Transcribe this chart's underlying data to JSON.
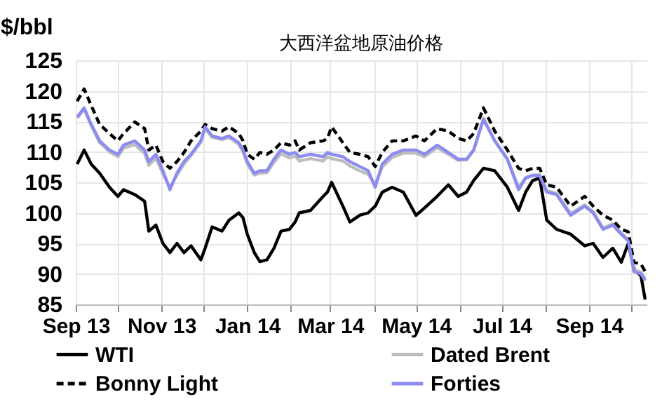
{
  "chart_data": {
    "type": "line",
    "title": "大西洋盆地原油价格",
    "ylabel": "$/bbl",
    "x": [
      "2013-09-02",
      "2013-09-07",
      "2013-09-12",
      "2013-09-18",
      "2013-09-25",
      "2013-10-01",
      "2013-10-05",
      "2013-10-13",
      "2013-10-20",
      "2013-10-23",
      "2013-10-28",
      "2013-11-02",
      "2013-11-07",
      "2013-11-12",
      "2013-11-17",
      "2013-11-22",
      "2013-11-29",
      "2013-12-02",
      "2013-12-07",
      "2013-12-14",
      "2013-12-19",
      "2013-12-26",
      "2013-12-29",
      "2014-01-01",
      "2014-01-06",
      "2014-01-10",
      "2014-01-15",
      "2014-01-20",
      "2014-01-25",
      "2014-01-31",
      "2014-02-04",
      "2014-02-07",
      "2014-02-15",
      "2014-02-24",
      "2014-02-27",
      "2014-03-02",
      "2014-03-10",
      "2014-03-15",
      "2014-03-22",
      "2014-03-28",
      "2014-04-02",
      "2014-04-07",
      "2014-04-14",
      "2014-04-22",
      "2014-05-01",
      "2014-05-07",
      "2014-05-16",
      "2014-05-24",
      "2014-05-31",
      "2014-06-06",
      "2014-06-11",
      "2014-06-18",
      "2014-06-26",
      "2014-07-05",
      "2014-07-13",
      "2014-07-18",
      "2014-07-23",
      "2014-07-28",
      "2014-08-02",
      "2014-08-09",
      "2014-08-19",
      "2014-08-29",
      "2014-09-04",
      "2014-09-11",
      "2014-09-18",
      "2014-09-24",
      "2014-09-29",
      "2014-10-03",
      "2014-10-08",
      "2014-10-11"
    ],
    "series": [
      {
        "name": "WTI",
        "color": "#000000",
        "line_style": "solid",
        "values": [
          108,
          110.3,
          108,
          106.5,
          104.2,
          102.7,
          103.8,
          103,
          101.9,
          97,
          98,
          95,
          93.5,
          95,
          93.5,
          94.6,
          92.3,
          94.2,
          97.7,
          97,
          98.8,
          100,
          99.2,
          96.5,
          93.5,
          92,
          92.3,
          94.2,
          97,
          97.3,
          98.5,
          100,
          100.4,
          102.7,
          103.4,
          105,
          101.1,
          98.5,
          99.6,
          100,
          101.1,
          103.4,
          104.2,
          103.4,
          99.6,
          100.8,
          102.7,
          104.6,
          102.7,
          103.4,
          105.3,
          107.3,
          106.9,
          104.2,
          100.4,
          103.4,
          105.3,
          105.7,
          98.8,
          97.3,
          96.5,
          94.6,
          95,
          92.7,
          94.2,
          91.9,
          95,
          90.8,
          89.7,
          85.8
        ]
      },
      {
        "name": "Dated Brent",
        "color": "#bdbdbd",
        "line_style": "solid",
        "values": [
          115.5,
          117,
          114.3,
          111.5,
          110,
          109.2,
          110.6,
          111.2,
          109.7,
          107.8,
          109,
          106.4,
          104.2,
          106.2,
          108,
          109.4,
          111.6,
          113.8,
          112.4,
          112,
          112.4,
          111.2,
          110,
          108,
          106.2,
          106.5,
          106.6,
          108.3,
          109.7,
          109,
          109.3,
          108.5,
          108.9,
          108.5,
          109.2,
          108.9,
          108.5,
          107.7,
          106.9,
          106.3,
          104.6,
          107.5,
          109.1,
          109.8,
          109.8,
          109.2,
          110.7,
          109.6,
          108.6,
          108.7,
          110.2,
          115.5,
          111.8,
          108.8,
          104.2,
          105.8,
          106.2,
          106.2,
          103.6,
          103.2,
          99.9,
          101.3,
          100.2,
          97.5,
          98.2,
          96.7,
          95.6,
          90.6,
          90.3,
          89.2
        ]
      },
      {
        "name": "Bonny Light",
        "color": "#000000",
        "line_style": "dashed",
        "values": [
          118.3,
          120.3,
          117.6,
          114.5,
          113,
          111.8,
          113,
          114.9,
          113.8,
          110.3,
          111.1,
          108.4,
          107.3,
          108.4,
          109.9,
          111.8,
          113.4,
          114.5,
          113.8,
          113.4,
          114.1,
          113,
          111.8,
          109.6,
          108.8,
          109.9,
          109.6,
          110.3,
          111.5,
          111.1,
          111.8,
          110.3,
          111.5,
          111.8,
          112.2,
          114.1,
          111.5,
          109.9,
          109.6,
          109.2,
          107.6,
          109.9,
          111.8,
          111.8,
          112.6,
          111.8,
          113.8,
          113.4,
          112.2,
          111.8,
          113,
          117.2,
          113.4,
          110.3,
          107.3,
          106.9,
          107.3,
          107.3,
          104.6,
          104.2,
          101.1,
          102.7,
          101.1,
          99.6,
          98.8,
          97.3,
          96.9,
          91.9,
          91.6,
          90.4
        ]
      },
      {
        "name": "Forties",
        "color": "#8c8cf0",
        "line_style": "solid",
        "values": [
          115.7,
          117.2,
          114.5,
          111.8,
          110.3,
          109.6,
          111.1,
          111.8,
          110.3,
          108.4,
          109.6,
          106.9,
          103.8,
          106.5,
          108.4,
          109.6,
          111.8,
          114.1,
          112.6,
          112.2,
          112.6,
          111.5,
          110.3,
          108.4,
          106.5,
          106.9,
          106.9,
          108.8,
          110.3,
          109.6,
          109.9,
          109.2,
          109.6,
          109.2,
          109.9,
          109.6,
          109.2,
          108.4,
          107.6,
          106.9,
          104.2,
          108,
          109.6,
          110.3,
          110.3,
          109.6,
          111.1,
          109.9,
          108.8,
          108.8,
          110.3,
          115.3,
          111.8,
          108.8,
          103.8,
          105.7,
          106.1,
          106.1,
          103.4,
          103,
          99.6,
          101.1,
          100,
          97.3,
          98,
          96.5,
          95.4,
          90.4,
          90,
          88.9
        ]
      }
    ],
    "xlim": [
      "2013-09-01",
      "2014-10-12"
    ],
    "xticks": [
      {
        "value": "2013-09-01",
        "label": "Sep 13"
      },
      {
        "value": "2013-10-01",
        "label": null
      },
      {
        "value": "2013-11-01",
        "label": "Nov 13"
      },
      {
        "value": "2013-12-01",
        "label": null
      },
      {
        "value": "2014-01-01",
        "label": "Jan 14"
      },
      {
        "value": "2014-02-01",
        "label": null
      },
      {
        "value": "2014-03-01",
        "label": "Mar 14"
      },
      {
        "value": "2014-04-01",
        "label": null
      },
      {
        "value": "2014-05-01",
        "label": "May 14"
      },
      {
        "value": "2014-06-01",
        "label": null
      },
      {
        "value": "2014-07-01",
        "label": "Jul 14"
      },
      {
        "value": "2014-08-01",
        "label": null
      },
      {
        "value": "2014-09-01",
        "label": "Sep 14"
      },
      {
        "value": "2014-10-01",
        "label": null
      }
    ],
    "ylim": [
      85,
      125
    ],
    "yticks": [
      85,
      90,
      95,
      100,
      105,
      110,
      115,
      120,
      125
    ],
    "grid": true,
    "legend": "bottom"
  }
}
